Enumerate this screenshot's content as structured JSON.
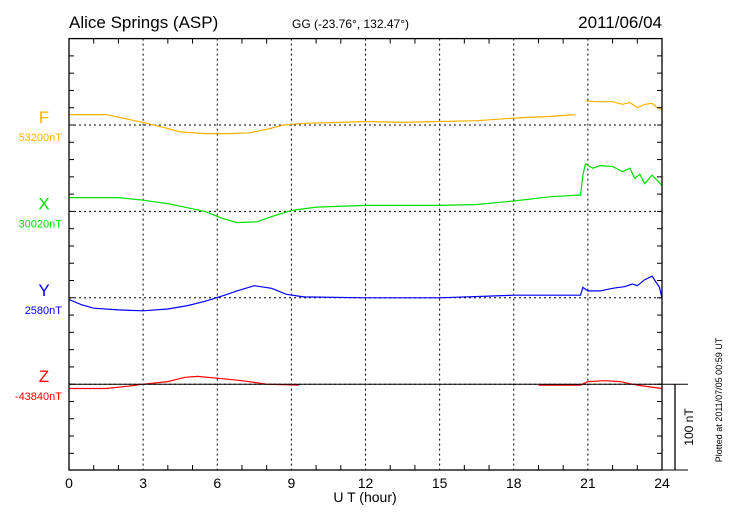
{
  "chart_data": {
    "type": "line",
    "title": "Alice Springs (ASP)",
    "subtitle": "GG (-23.76°, 132.47°)",
    "date": "2011/06/04",
    "xlabel": "U T (hour)",
    "xlim": [
      0,
      24
    ],
    "xticks": [
      "0",
      "3",
      "6",
      "9",
      "12",
      "15",
      "18",
      "21",
      "24"
    ],
    "scale_label": "100 nT",
    "scale_nT": 100,
    "minor_tick_nT": 20,
    "footer": "Plotted at 2011/07/05 00:59 UT",
    "grid": true,
    "series": [
      {
        "name": "F",
        "baseline_label": "53200nT",
        "color": "#ffb000",
        "segments": [
          [
            [
              0,
              12
            ],
            [
              1.5,
              12
            ],
            [
              2.5,
              6
            ],
            [
              3,
              3
            ],
            [
              4,
              -4
            ],
            [
              4.5,
              -8
            ],
            [
              5.5,
              -10
            ],
            [
              6.5,
              -10
            ],
            [
              7.3,
              -9
            ],
            [
              8,
              -5
            ],
            [
              8.7,
              0
            ],
            [
              9.5,
              2
            ],
            [
              11,
              3
            ],
            [
              12,
              4
            ],
            [
              13.5,
              3
            ],
            [
              15,
              4
            ],
            [
              16.5,
              5
            ],
            [
              18,
              8
            ],
            [
              19.5,
              10
            ],
            [
              20.5,
              12
            ]
          ],
          [
            [
              20.9,
              28
            ],
            [
              21.3,
              27
            ],
            [
              22,
              27
            ],
            [
              22.4,
              24
            ],
            [
              22.7,
              26
            ],
            [
              23,
              20
            ],
            [
              23.3,
              24
            ],
            [
              23.6,
              25
            ],
            [
              23.8,
              20
            ],
            [
              24,
              18
            ]
          ]
        ]
      },
      {
        "name": "X",
        "baseline_label": "30020nT",
        "color": "#00e000",
        "segments": [
          [
            [
              0,
              16
            ],
            [
              2,
              16
            ],
            [
              3,
              13
            ],
            [
              4,
              9
            ],
            [
              4.5,
              6
            ],
            [
              5.5,
              0
            ],
            [
              6.2,
              -8
            ],
            [
              6.8,
              -13
            ],
            [
              7.6,
              -12
            ],
            [
              8.2,
              -6
            ],
            [
              9,
              1
            ],
            [
              10,
              5
            ],
            [
              12,
              7
            ],
            [
              13.5,
              7
            ],
            [
              15,
              7
            ],
            [
              16.5,
              8
            ],
            [
              18,
              12
            ],
            [
              19.5,
              17
            ],
            [
              20.7,
              19
            ],
            [
              20.8,
              42
            ],
            [
              20.9,
              55
            ],
            [
              21.2,
              50
            ],
            [
              21.5,
              53
            ],
            [
              22,
              52
            ],
            [
              22.4,
              46
            ],
            [
              22.7,
              50
            ],
            [
              22.9,
              38
            ],
            [
              23.1,
              43
            ],
            [
              23.3,
              32
            ],
            [
              23.6,
              42
            ],
            [
              23.8,
              36
            ],
            [
              24,
              30
            ]
          ]
        ]
      },
      {
        "name": "Y",
        "baseline_label": "2580nT",
        "color": "#0000ff",
        "segments": [
          [
            [
              0,
              -2
            ],
            [
              0.5,
              -8
            ],
            [
              1,
              -12
            ],
            [
              2,
              -14
            ],
            [
              3,
              -15
            ],
            [
              4,
              -13
            ],
            [
              4.8,
              -9
            ],
            [
              5.5,
              -4
            ],
            [
              6.3,
              3
            ],
            [
              6.8,
              8
            ],
            [
              7.5,
              14
            ],
            [
              8.2,
              11
            ],
            [
              8.8,
              4
            ],
            [
              9.5,
              1
            ],
            [
              12,
              0
            ],
            [
              15,
              0
            ],
            [
              17,
              2
            ],
            [
              18,
              3
            ],
            [
              20.7,
              3
            ],
            [
              20.8,
              12
            ],
            [
              21,
              8
            ],
            [
              21.5,
              8
            ],
            [
              22,
              11
            ],
            [
              22.5,
              13
            ],
            [
              22.8,
              16
            ],
            [
              23,
              14
            ],
            [
              23.3,
              21
            ],
            [
              23.6,
              25
            ],
            [
              23.9,
              12
            ],
            [
              24,
              0
            ]
          ]
        ]
      },
      {
        "name": "Z",
        "baseline_label": "-43840nT",
        "color": "#ff0000",
        "segments": [
          [
            [
              0,
              -5
            ],
            [
              1.5,
              -5
            ],
            [
              2.5,
              -2
            ],
            [
              3,
              0
            ],
            [
              4,
              3
            ],
            [
              4.7,
              8
            ],
            [
              5.2,
              9
            ],
            [
              6,
              7
            ],
            [
              7,
              4
            ],
            [
              8,
              0
            ],
            [
              9.3,
              -1
            ]
          ],
          [
            [
              19,
              -1
            ],
            [
              20.7,
              -1
            ],
            [
              21,
              3
            ],
            [
              21.7,
              4
            ],
            [
              22.3,
              3
            ],
            [
              22.8,
              0
            ],
            [
              23.2,
              -2
            ],
            [
              24,
              -5
            ]
          ]
        ]
      }
    ]
  }
}
